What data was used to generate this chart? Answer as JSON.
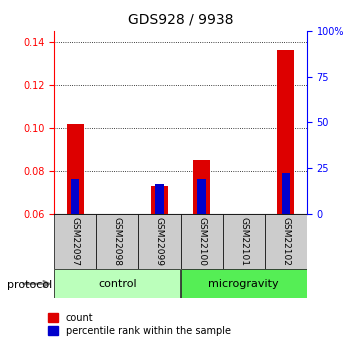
{
  "title": "GDS928 / 9938",
  "samples": [
    "GSM22097",
    "GSM22098",
    "GSM22099",
    "GSM22100",
    "GSM22101",
    "GSM22102"
  ],
  "red_bar_tops": [
    0.102,
    0.06,
    0.073,
    0.085,
    0.06,
    0.136
  ],
  "blue_bar_vals": [
    0.076,
    0.06,
    0.074,
    0.076,
    0.06,
    0.079
  ],
  "baseline": 0.06,
  "ylim_left": [
    0.06,
    0.145
  ],
  "ylim_right": [
    0,
    100
  ],
  "yticks_left": [
    0.06,
    0.08,
    0.1,
    0.12,
    0.14
  ],
  "ytick_labels_left": [
    "0.06",
    "0.08",
    "0.10",
    "0.12",
    "0.14"
  ],
  "yticks_right": [
    0,
    25,
    50,
    75,
    100
  ],
  "ytick_labels_right": [
    "0",
    "25",
    "50",
    "75",
    "100%"
  ],
  "bar_color_red": "#dd0000",
  "bar_color_blue": "#0000cc",
  "sample_box_color": "#cccccc",
  "ctrl_color": "#bbffbb",
  "micro_color": "#55ee55",
  "legend_items": [
    "count",
    "percentile rank within the sample"
  ]
}
